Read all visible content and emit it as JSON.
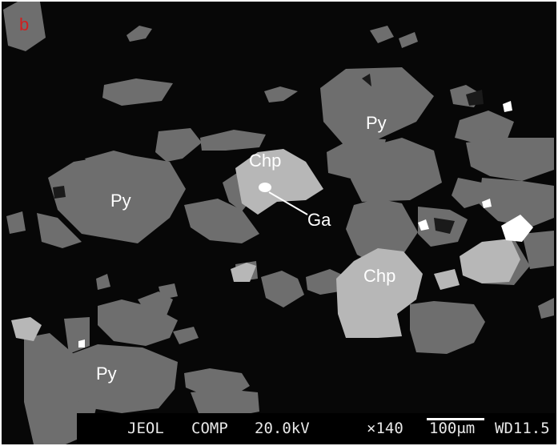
{
  "panel_letter": "b",
  "mineral_labels": {
    "py1": "Py",
    "py2": "Py",
    "py3": "Py",
    "chp1": "Chp",
    "chp2": "Chp",
    "ga": "Ga"
  },
  "info_bar": {
    "maker": "JEOL",
    "mode": "COMP",
    "voltage": "20.0kV",
    "magnification": "×140",
    "scale": "100μm",
    "working_distance": "WD11.5"
  },
  "colors": {
    "background": "#070707",
    "pyrite_gray": "#6f6f6f",
    "chalcopyrite_gray": "#b9b9b9",
    "galena_white": "#ffffff",
    "panel_letter": "#d11f1f"
  }
}
